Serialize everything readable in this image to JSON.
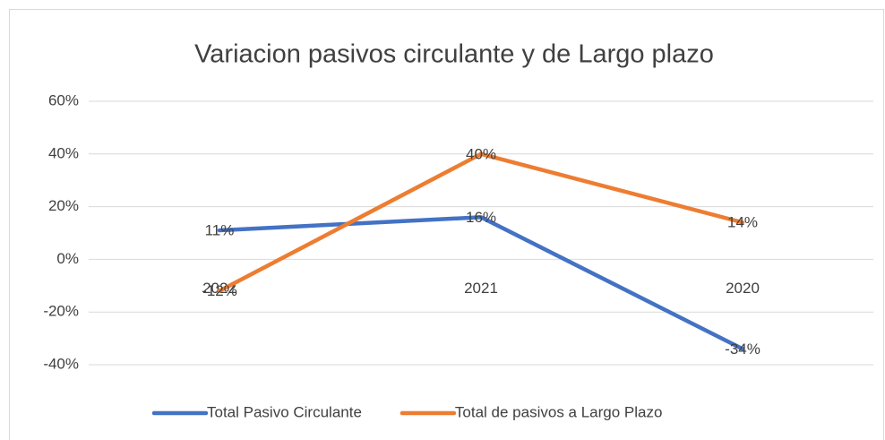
{
  "chart_data": {
    "type": "line",
    "title": "Variacion pasivos circulante y de Largo plazo",
    "categories": [
      "2022",
      "2021",
      "2020"
    ],
    "series": [
      {
        "name": "Total Pasivo Circulante",
        "color": "#4472c4",
        "values": [
          11,
          16,
          -34
        ],
        "value_labels": [
          "11%",
          "16%",
          "-34%"
        ]
      },
      {
        "name": "Total de pasivos a Largo Plazo",
        "color": "#ed7d31",
        "values": [
          -12,
          40,
          14
        ],
        "value_labels": [
          "-12%",
          "40%",
          "14%"
        ]
      }
    ],
    "ylim": [
      -40,
      60
    ],
    "yticks": [
      {
        "value": -40,
        "label": "-40%"
      },
      {
        "value": -20,
        "label": "-20%"
      },
      {
        "value": 0,
        "label": "0%"
      },
      {
        "value": 20,
        "label": "20%"
      },
      {
        "value": 40,
        "label": "40%"
      },
      {
        "value": 60,
        "label": "60%"
      }
    ],
    "grid": true,
    "legend": "bottom"
  }
}
